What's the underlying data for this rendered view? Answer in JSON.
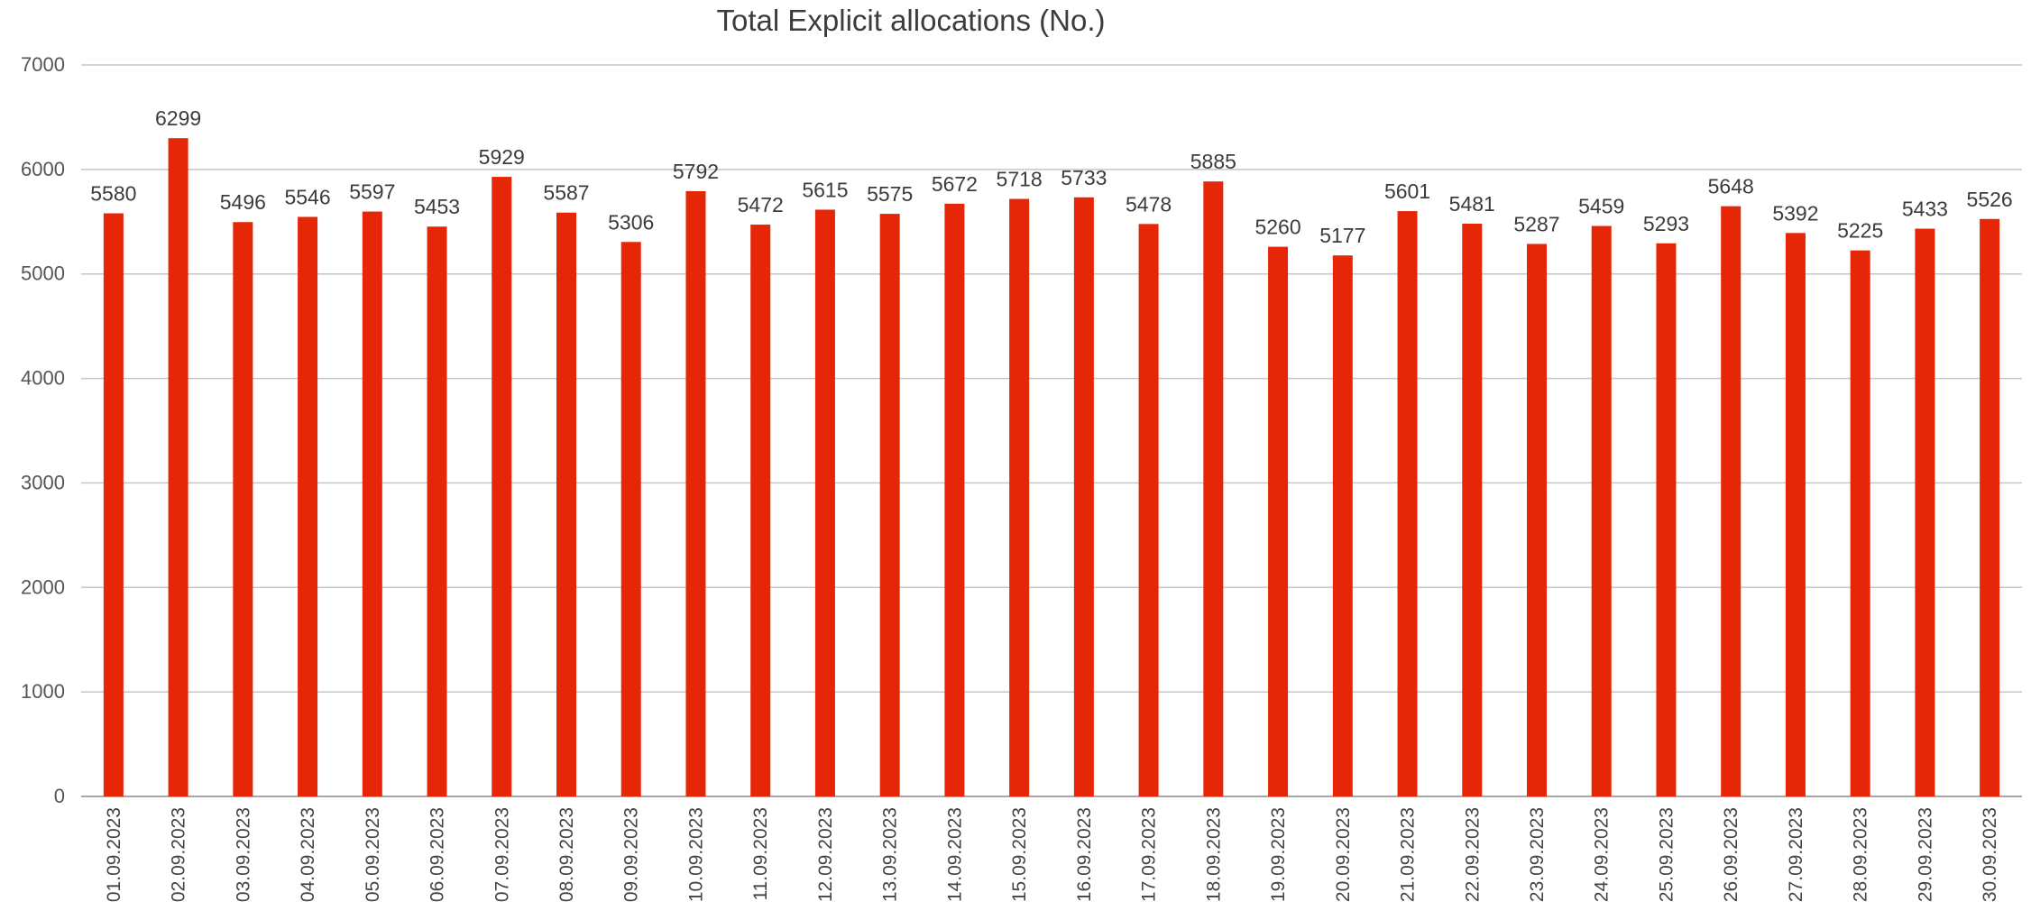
{
  "chart_data": {
    "type": "bar",
    "title": "Total Explicit allocations (No.)",
    "xlabel": "",
    "ylabel": "",
    "ylim": [
      0,
      7000
    ],
    "y_ticks": [
      "0",
      "1000",
      "2000",
      "3000",
      "4000",
      "5000",
      "6000",
      "7000"
    ],
    "grid": true,
    "legend": "none",
    "bar_color": "#e52607",
    "categories": [
      "01.09.2023",
      "02.09.2023",
      "03.09.2023",
      "04.09.2023",
      "05.09.2023",
      "06.09.2023",
      "07.09.2023",
      "08.09.2023",
      "09.09.2023",
      "10.09.2023",
      "11.09.2023",
      "12.09.2023",
      "13.09.2023",
      "14.09.2023",
      "15.09.2023",
      "16.09.2023",
      "17.09.2023",
      "18.09.2023",
      "19.09.2023",
      "20.09.2023",
      "21.09.2023",
      "22.09.2023",
      "23.09.2023",
      "24.09.2023",
      "25.09.2023",
      "26.09.2023",
      "27.09.2023",
      "28.09.2023",
      "29.09.2023",
      "30.09.2023"
    ],
    "values": [
      5580,
      6299,
      5496,
      5546,
      5597,
      5453,
      5929,
      5587,
      5306,
      5792,
      5472,
      5615,
      5575,
      5672,
      5718,
      5733,
      5478,
      5885,
      5260,
      5177,
      5601,
      5481,
      5287,
      5459,
      5293,
      5648,
      5392,
      5225,
      5433,
      5526
    ]
  }
}
